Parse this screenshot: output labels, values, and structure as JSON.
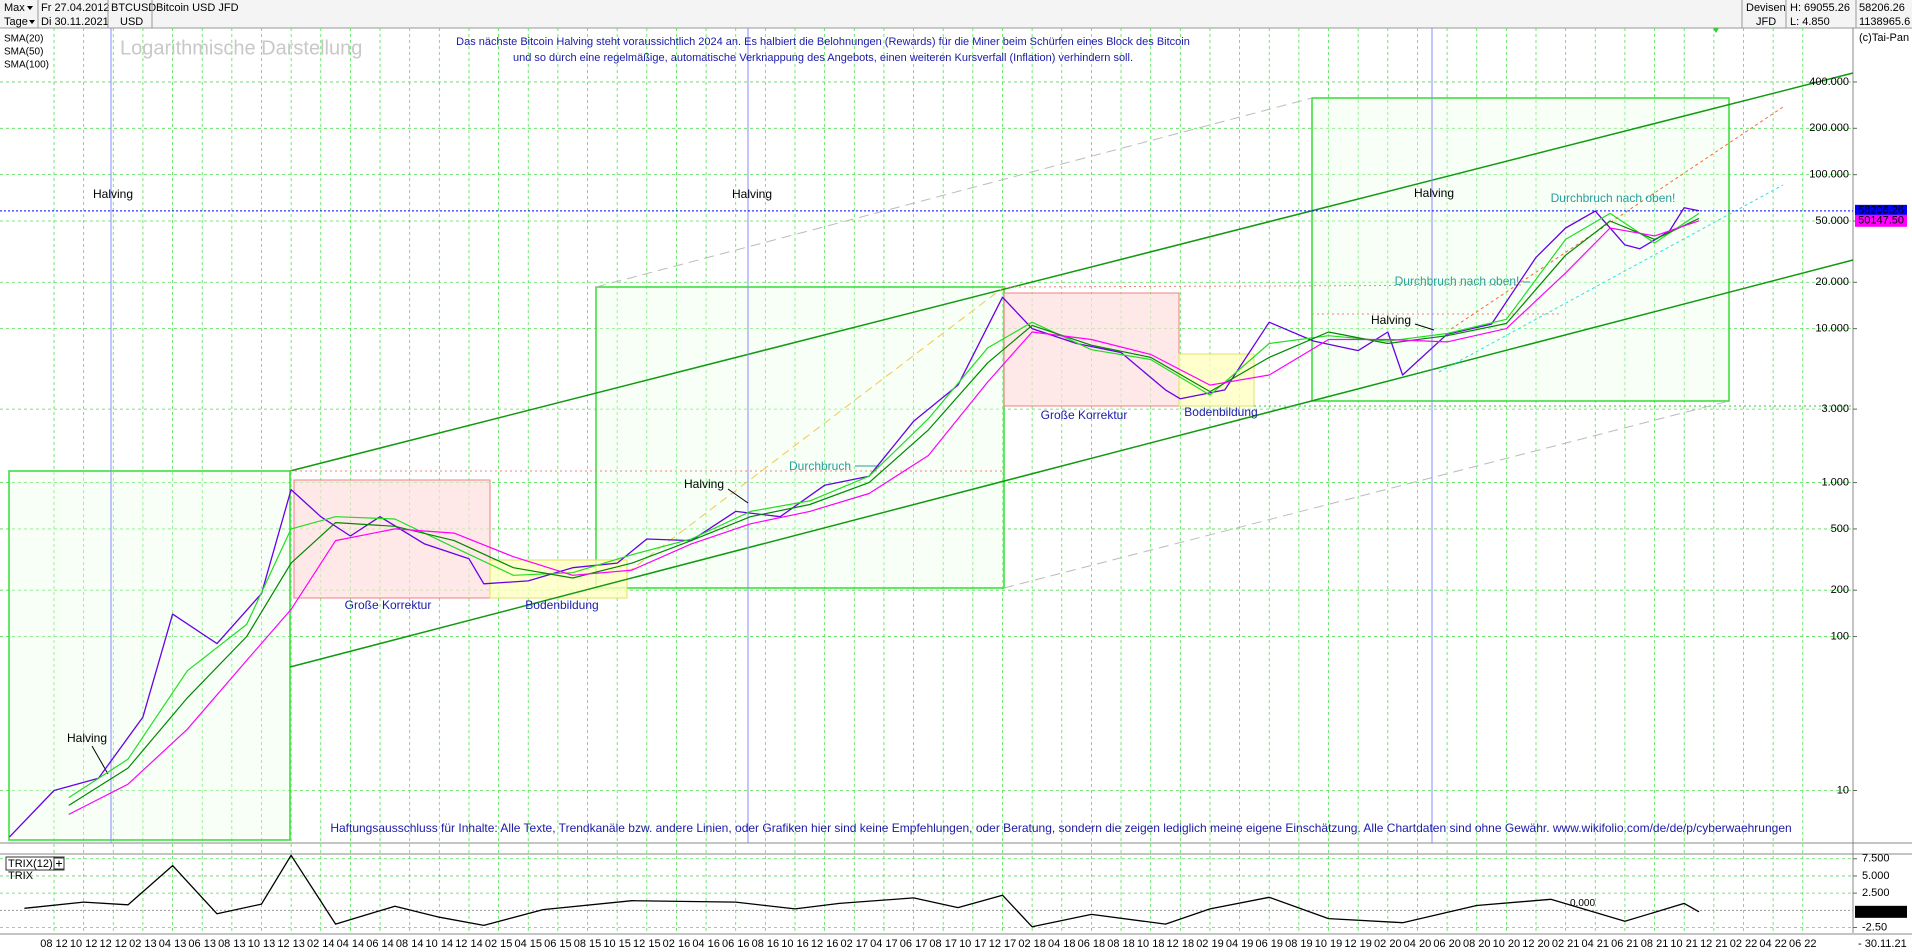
{
  "header": {
    "range": "Max",
    "period": "Tage",
    "from": "Fr 27.04.2012",
    "to": "Di 30.11.2021",
    "symbol": "BTCUSD",
    "currency": "USD",
    "market": "Devisen",
    "exchange": "JFD",
    "high": "H: 69055.26",
    "low": "L: 4.850",
    "last": "58206.26",
    "volume": "1138965.6",
    "copyright": "(c)Tai-Pan"
  },
  "chart_data": [
    {
      "type": "line",
      "log_scale": true,
      "grid": true,
      "ylim": [
        4.7,
        870000
      ],
      "yticks": [
        {
          "value": 400000,
          "label": "400.000"
        },
        {
          "value": 200000,
          "label": "200.000"
        },
        {
          "value": 100000,
          "label": "100.000"
        },
        {
          "value": 50000,
          "label": "50.000"
        },
        {
          "value": 20000,
          "label": "20.000"
        },
        {
          "value": 10000,
          "label": "10.000"
        },
        {
          "value": 3000,
          "label": "3.000"
        },
        {
          "value": 1000,
          "label": "1.000"
        },
        500,
        200,
        100,
        10
      ],
      "series": [
        {
          "name": "Bitcoin USD JFD",
          "color": "#6a00e8",
          "x": [
            "2012-05",
            "2012-08",
            "2012-11",
            "2013-02",
            "2013-04",
            "2013-07",
            "2013-10",
            "2013-12",
            "2014-02",
            "2014-04",
            "2014-06",
            "2014-09",
            "2014-12",
            "2015-01",
            "2015-04",
            "2015-07",
            "2015-10",
            "2015-12",
            "2016-03",
            "2016-06",
            "2016-09",
            "2016-12",
            "2017-03",
            "2017-06",
            "2017-09",
            "2017-12",
            "2018-02",
            "2018-05",
            "2018-08",
            "2018-11",
            "2018-12",
            "2019-03",
            "2019-06",
            "2019-09",
            "2019-12",
            "2020-02",
            "2020-03",
            "2020-06",
            "2020-09",
            "2020-12",
            "2021-02",
            "2021-04",
            "2021-06",
            "2021-07",
            "2021-09",
            "2021-10",
            "2021-11"
          ],
          "values": [
            5,
            10,
            12,
            30,
            140,
            90,
            190,
            900,
            600,
            450,
            600,
            400,
            320,
            220,
            230,
            280,
            300,
            430,
            420,
            650,
            600,
            960,
            1100,
            2500,
            4300,
            16000,
            10000,
            8000,
            7000,
            4000,
            3500,
            4000,
            11000,
            8300,
            7200,
            9500,
            5000,
            9200,
            10700,
            29000,
            45000,
            58000,
            35000,
            33000,
            43000,
            61000,
            58206.26
          ]
        },
        {
          "name": "SMA(20)",
          "color": "#22dd22",
          "x": [
            "2012-09",
            "2013-01",
            "2013-05",
            "2013-09",
            "2013-12",
            "2014-03",
            "2014-07",
            "2014-11",
            "2015-03",
            "2015-07",
            "2015-11",
            "2016-03",
            "2016-07",
            "2016-11",
            "2017-03",
            "2017-07",
            "2017-11",
            "2018-02",
            "2018-06",
            "2018-10",
            "2019-02",
            "2019-06",
            "2019-10",
            "2020-02",
            "2020-06",
            "2020-10",
            "2021-02",
            "2021-05",
            "2021-08",
            "2021-11"
          ],
          "values": [
            9,
            16,
            60,
            120,
            500,
            600,
            580,
            380,
            250,
            260,
            340,
            430,
            650,
            760,
            1100,
            2600,
            7500,
            11000,
            7300,
            6300,
            3700,
            8000,
            9000,
            8300,
            9300,
            11500,
            38000,
            56000,
            36000,
            56000
          ]
        },
        {
          "name": "SMA(50)",
          "color": "#008800",
          "x": [
            "2012-09",
            "2013-01",
            "2013-05",
            "2013-09",
            "2013-12",
            "2014-03",
            "2014-07",
            "2014-11",
            "2015-03",
            "2015-07",
            "2015-11",
            "2016-03",
            "2016-07",
            "2016-11",
            "2017-03",
            "2017-07",
            "2017-11",
            "2018-02",
            "2018-06",
            "2018-10",
            "2019-02",
            "2019-06",
            "2019-10",
            "2020-02",
            "2020-06",
            "2020-10",
            "2021-02",
            "2021-05",
            "2021-08",
            "2021-11"
          ],
          "values": [
            8,
            14,
            40,
            100,
            300,
            550,
            520,
            420,
            280,
            240,
            300,
            420,
            600,
            720,
            1000,
            2200,
            6000,
            10500,
            7800,
            6500,
            3900,
            6500,
            9500,
            8000,
            9000,
            10800,
            30000,
            50000,
            38000,
            52000
          ]
        },
        {
          "name": "SMA(100)",
          "color": "#ff00ff",
          "x": [
            "2012-09",
            "2013-01",
            "2013-05",
            "2013-09",
            "2013-12",
            "2014-03",
            "2014-07",
            "2014-11",
            "2015-03",
            "2015-07",
            "2015-11",
            "2016-03",
            "2016-07",
            "2016-11",
            "2017-03",
            "2017-07",
            "2017-11",
            "2018-02",
            "2018-06",
            "2018-10",
            "2019-02",
            "2019-06",
            "2019-10",
            "2020-02",
            "2020-06",
            "2020-10",
            "2021-02",
            "2021-05",
            "2021-08",
            "2021-11"
          ],
          "values": [
            7,
            11,
            25,
            70,
            150,
            420,
            500,
            470,
            330,
            250,
            270,
            400,
            540,
            650,
            850,
            1500,
            4500,
            9500,
            8500,
            6800,
            4300,
            5000,
            8500,
            8500,
            8200,
            10000,
            23000,
            45000,
            40000,
            50147.5
          ]
        }
      ],
      "markers": [
        {
          "value": 58206.26,
          "label": "58206.26",
          "color": "#0000ff"
        },
        {
          "value": 50147.5,
          "label": "50147.50",
          "color": "#ff00ff"
        }
      ],
      "annotations": [
        "Logarithmische Darstellung",
        "Das nächste Bitcoin Halving steht voraussichtlich 2024 an. Es halbiert die Belohnungen (Rewards) für die Miner beim Schürfen eines Block des Bitcoin",
        "und so durch eine regelmäßige, automatische Verknappung des Angebots, einen weiteren Kursverfall (Inflation) verhindern soll.",
        "Halving",
        "Halving",
        "Halving",
        "Halving",
        "Halving",
        "Halving",
        "Große Korrektur",
        "Große Korrektur",
        "Bodenbildung",
        "Bodenbildung",
        "Durchbruch",
        "Durchbruch nach oben!",
        "Durchbruch nach oben!",
        "Haftungsausschluss für Inhalte: Alle Texte, Trendkanäle bzw. andere Linien, oder Grafiken hier sind keine Empfehlungen, oder Beratung, sondern die zeigen lediglich meine eigene Einschätzung. Alle Chartdaten sind ohne Gewähr.  www.wikifolio.com/de/de/p/cyberwaehrungen"
      ]
    },
    {
      "type": "line",
      "title": "TRIX(12)",
      "grid": true,
      "ylim": [
        -3.3,
        7.9
      ],
      "yticks": [
        {
          "value": 7.5,
          "label": "7.500"
        },
        {
          "value": 5,
          "label": "5.000"
        },
        {
          "value": 2.5,
          "label": "2.500"
        },
        {
          "value": -2.5,
          "label": "-2.50"
        }
      ],
      "reference": {
        "value": 0,
        "label": "0.000"
      },
      "current_label": {
        "value": -0.22,
        "label": "-0.22"
      },
      "series": [
        {
          "name": "TRIX",
          "color": "#000000",
          "x": [
            "2012-06",
            "2012-10",
            "2013-01",
            "2013-04",
            "2013-07",
            "2013-10",
            "2013-12",
            "2014-03",
            "2014-07",
            "2014-10",
            "2015-01",
            "2015-05",
            "2015-11",
            "2016-06",
            "2016-10",
            "2017-01",
            "2017-06",
            "2017-09",
            "2017-12",
            "2018-02",
            "2018-06",
            "2018-11",
            "2019-02",
            "2019-06",
            "2019-10",
            "2020-03",
            "2020-08",
            "2021-01",
            "2021-06",
            "2021-10",
            "2021-11"
          ],
          "values": [
            0.3,
            1.2,
            0.8,
            6.5,
            -0.5,
            0.9,
            8.0,
            -2.0,
            0.6,
            -1.0,
            -2.2,
            0.1,
            1.4,
            1.2,
            0.2,
            1.0,
            1.8,
            0.4,
            2.2,
            -2.4,
            -0.6,
            -2.0,
            0.2,
            1.9,
            -1.2,
            -1.8,
            0.7,
            1.6,
            -1.6,
            1.0,
            -0.22
          ]
        }
      ],
      "categories": [
        "08 12",
        "10 12",
        "12 12",
        "02 13",
        "04 13",
        "06 13",
        "08 13",
        "10 13",
        "12 13",
        "02 14",
        "04 14",
        "06 14",
        "08 14",
        "10 14",
        "12 14",
        "02 15",
        "04 15",
        "06 15",
        "08 15",
        "10 15",
        "12 15",
        "02 16",
        "04 16",
        "06 16",
        "08 16",
        "10 16",
        "12 16",
        "02 17",
        "04 17",
        "06 17",
        "08 17",
        "10 17",
        "12 17",
        "02 18",
        "04 18",
        "06 18",
        "08 18",
        "10 18",
        "12 18",
        "02 19",
        "04 19",
        "06 19",
        "08 19",
        "10 19",
        "12 19",
        "02 20",
        "04 20",
        "06 20",
        "08 20",
        "10 20",
        "12 20",
        "02 21",
        "04 21",
        "06 21",
        "08 21",
        "10 21",
        "12 21",
        "02 22",
        "04 22",
        "06 22"
      ],
      "x_end_label": "- 30.11.21"
    }
  ]
}
